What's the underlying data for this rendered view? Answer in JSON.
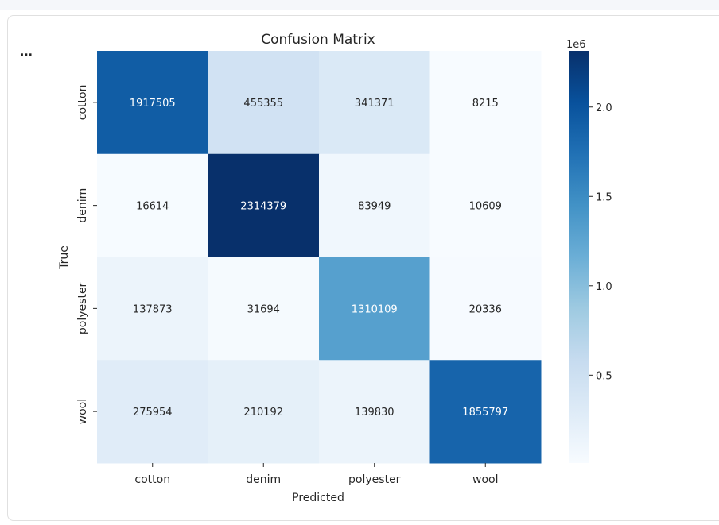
{
  "output": {
    "ellipsis_label": "..."
  },
  "chart_data": {
    "type": "heatmap",
    "title": "Confusion Matrix",
    "xlabel": "Predicted",
    "ylabel": "True",
    "x_categories": [
      "cotton",
      "denim",
      "polyester",
      "wool"
    ],
    "y_categories": [
      "cotton",
      "denim",
      "polyester",
      "wool"
    ],
    "values": [
      [
        1917505,
        455355,
        341371,
        8215
      ],
      [
        16614,
        2314379,
        83949,
        10609
      ],
      [
        137873,
        31694,
        1310109,
        20336
      ],
      [
        275954,
        210192,
        139830,
        1855797
      ]
    ],
    "colormap": "Blues",
    "colorbar": {
      "multiplier_label": "1e6",
      "tick_labels": [
        "0.5",
        "1.0",
        "1.5",
        "2.0"
      ],
      "tick_values": [
        500000,
        1000000,
        1500000,
        2000000
      ],
      "min": 8215,
      "max": 2314379
    },
    "colors": {
      "low": "#f7fbff",
      "high": "#08306b"
    }
  }
}
